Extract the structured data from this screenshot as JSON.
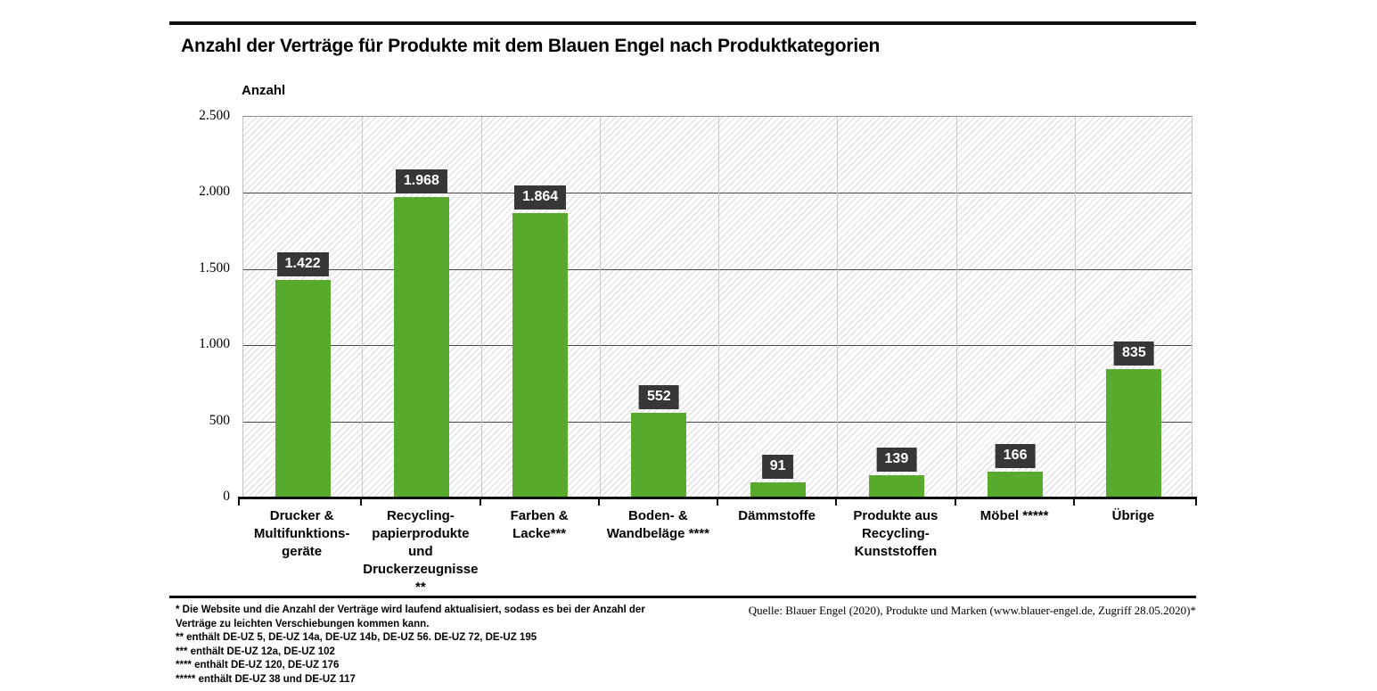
{
  "title": "Anzahl der Verträge für Produkte mit dem Blauen Engel nach Produktkategorien",
  "chart_data": {
    "type": "bar",
    "title": "Anzahl der Verträge für Produkte mit dem Blauen Engel nach Produktkategorien",
    "ylabel": "Anzahl",
    "xlabel": "",
    "ylim": [
      0,
      2500
    ],
    "ytick_interval": 500,
    "ytick_labels_top_to_bottom": [
      "2.500",
      "2.000",
      "1.500",
      "1.000",
      "500",
      "0"
    ],
    "grid": true,
    "legend": "none",
    "categories": [
      "Drucker &\nMultifunktions-\ngeräte",
      "Recycling-\npapierprodukte\nund\nDruckerzeugnisse\n**",
      "Farben &\nLacke***",
      "Boden- &\nWandbeläge ****",
      "Dämmstoffe",
      "Produkte aus\nRecycling-\nKunststoffen",
      "Möbel *****",
      "Übrige"
    ],
    "values": [
      1422,
      1968,
      1864,
      552,
      91,
      139,
      166,
      835
    ],
    "value_labels": [
      "1.422",
      "1.968",
      "1.864",
      "552",
      "91",
      "139",
      "166",
      "835"
    ],
    "colors": {
      "bar": "#58aa2d",
      "value_box_bg": "#373737",
      "value_box_text": "#ffffff",
      "h_gridline": "#4a4a4a",
      "v_gridline": "#c8c8c8",
      "axis": "#101010"
    }
  },
  "footnotes": [
    "* Die Website und die Anzahl der Verträge wird laufend aktualisiert, sodass es bei der Anzahl der",
    "Verträge zu leichten Verschiebungen kommen kann.",
    "** enthält DE-UZ 5, DE-UZ 14a, DE-UZ 14b, DE-UZ 56. DE-UZ 72, DE-UZ 195",
    "*** enthält DE-UZ 12a, DE-UZ 102",
    "**** enthält DE-UZ 120, DE-UZ 176",
    "***** enthält DE-UZ 38 und DE-UZ 117"
  ],
  "source": "Quelle: Blauer Engel (2020), Produkte und Marken (www.blauer-engel.de, Zugriff 28.05.2020)*"
}
